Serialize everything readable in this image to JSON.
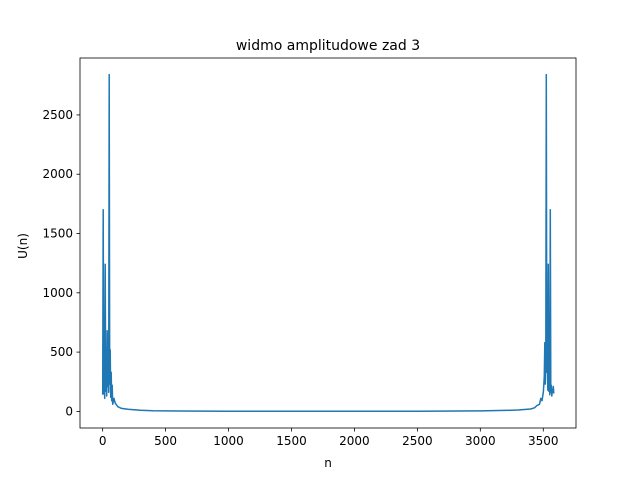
{
  "chart_data": {
    "type": "line",
    "title": "widmo amplitudowe zad 3",
    "xlabel": "n",
    "ylabel": "U(n)",
    "xlim": [
      -180,
      3760
    ],
    "ylim": [
      -140,
      2980
    ],
    "xticks": [
      0,
      500,
      1000,
      1500,
      2000,
      2500,
      3000,
      3500
    ],
    "yticks": [
      0,
      500,
      1000,
      1500,
      2000,
      2500
    ],
    "grid": false,
    "color": "#1f77b4",
    "x": [
      0,
      4,
      8,
      12,
      16,
      20,
      24,
      28,
      32,
      36,
      40,
      44,
      48,
      52,
      56,
      60,
      64,
      68,
      72,
      76,
      80,
      90,
      100,
      120,
      150,
      200,
      300,
      400,
      600,
      1000,
      1500,
      1800,
      2100,
      2500,
      3000,
      3200,
      3300,
      3400,
      3430,
      3450,
      3470,
      3480,
      3490,
      3500,
      3504,
      3508,
      3512,
      3516,
      3520,
      3524,
      3528,
      3532,
      3536,
      3540,
      3544,
      3548,
      3552,
      3556,
      3560,
      3564,
      3568,
      3572,
      3576,
      3580,
      3584
    ],
    "y": [
      140,
      1700,
      150,
      280,
      110,
      1240,
      170,
      390,
      130,
      680,
      210,
      470,
      160,
      2840,
      230,
      520,
      120,
      330,
      90,
      220,
      60,
      110,
      70,
      40,
      25,
      18,
      10,
      6,
      3,
      2,
      1,
      1,
      1,
      2,
      4,
      8,
      12,
      20,
      30,
      50,
      60,
      110,
      90,
      160,
      220,
      300,
      580,
      230,
      410,
      2840,
      330,
      560,
      180,
      1240,
      170,
      330,
      140,
      1700,
      160,
      220,
      130,
      180,
      160,
      210,
      150
    ]
  }
}
